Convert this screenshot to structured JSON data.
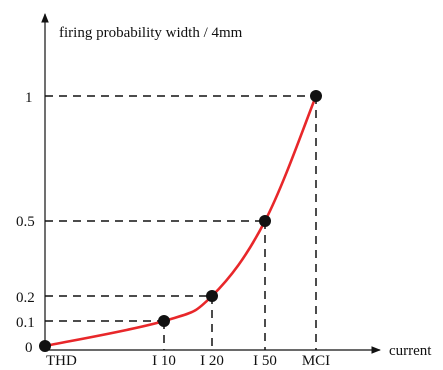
{
  "chart_data": {
    "type": "line",
    "ylabel": "firing probability width / 4mm",
    "xlabel": "current",
    "x_points": [
      "THD",
      "I 10",
      "I 20",
      "I 50",
      "MCI"
    ],
    "y_ticks": [
      "0",
      "0.1",
      "0.2",
      "0.5",
      "1"
    ],
    "series": [
      {
        "x": [
          "THD",
          "I 10",
          "I 20",
          "I 50",
          "MCI"
        ],
        "values": [
          0,
          0.1,
          0.2,
          0.5,
          1
        ]
      }
    ],
    "ylim": [
      0,
      1
    ],
    "grid": false,
    "colors": {
      "curve": "#e8272a",
      "points": "#111111",
      "axes": "#111111",
      "guides": "#111111"
    }
  }
}
